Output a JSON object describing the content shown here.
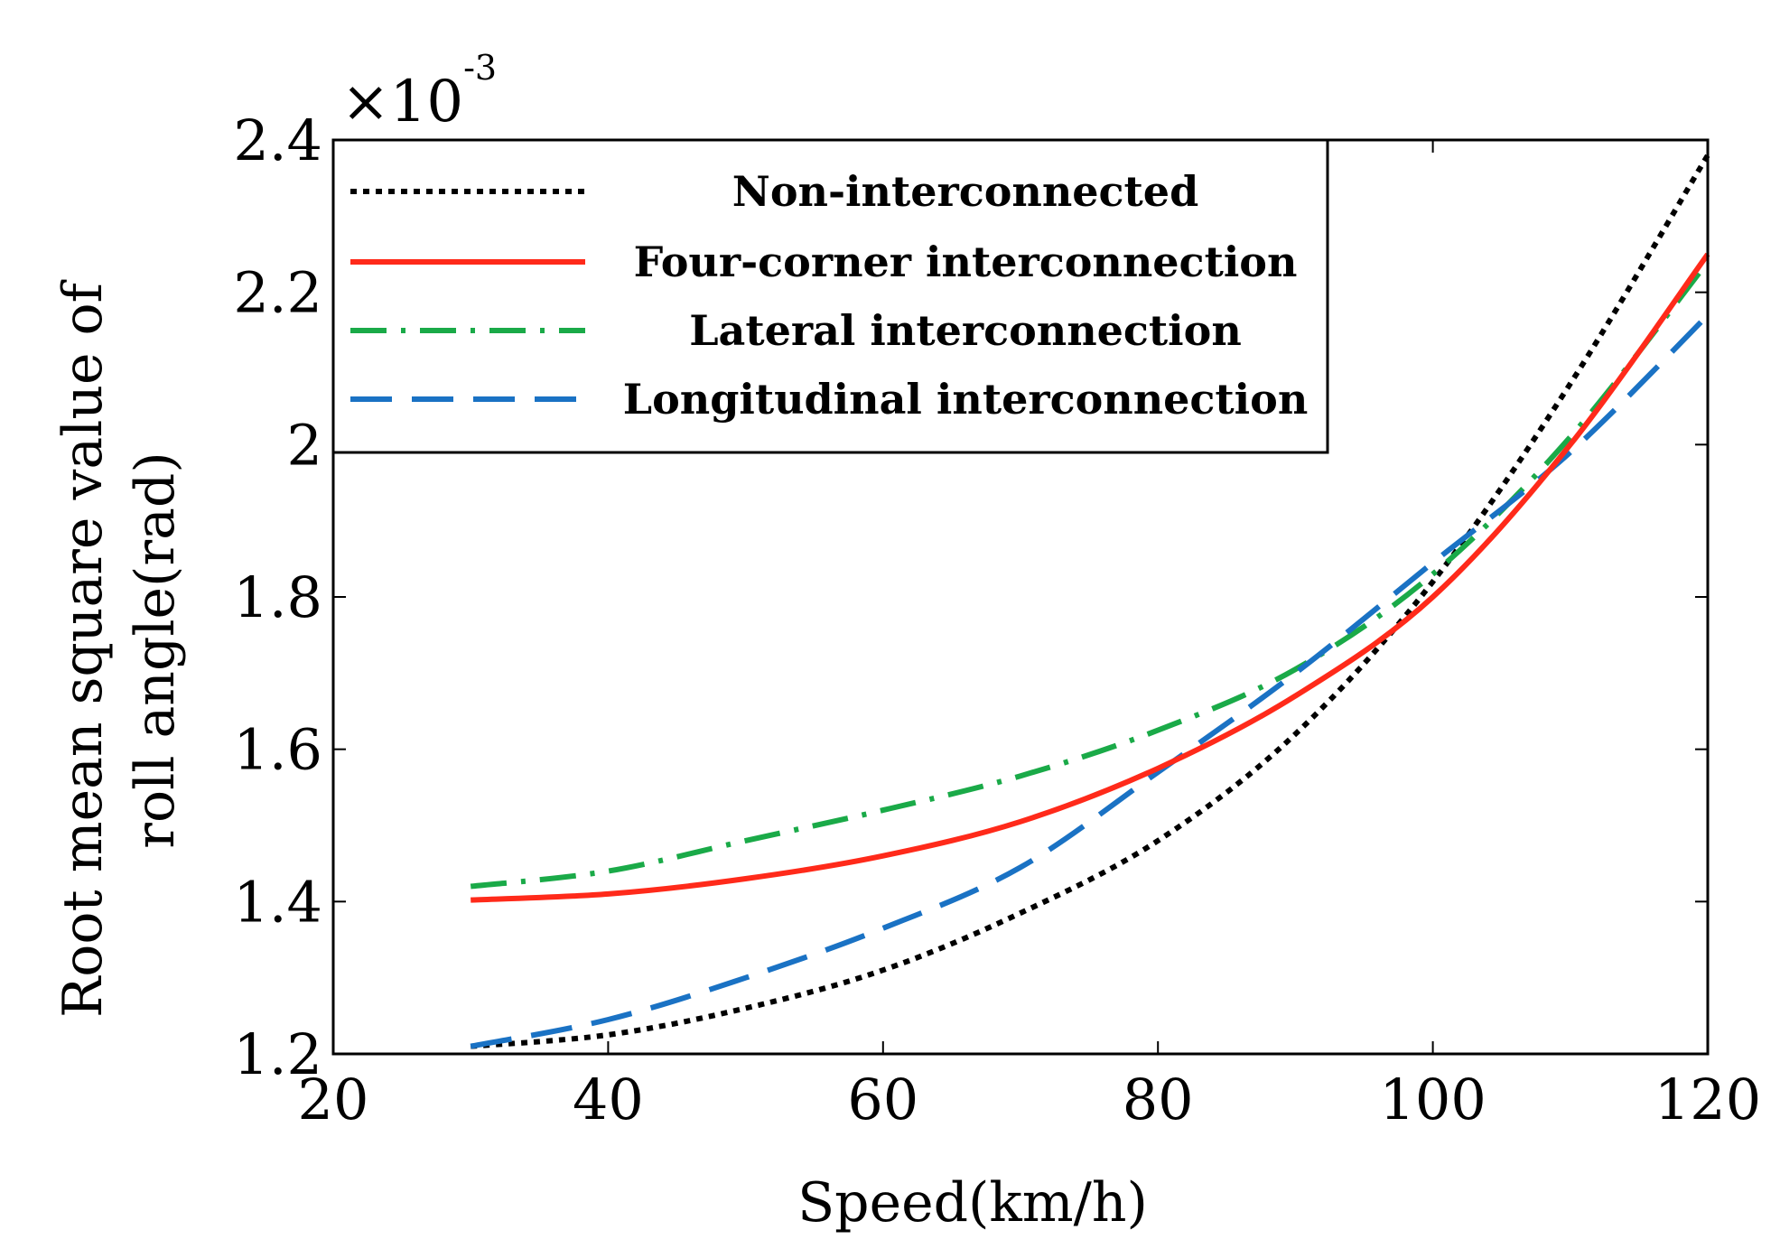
{
  "chart_data": {
    "type": "line",
    "title": "",
    "xlabel": "Speed(km/h)",
    "ylabel_lines": [
      "Root mean square value of",
      "roll angle(rad)"
    ],
    "xlim": [
      20,
      120
    ],
    "ylim": [
      1.2,
      2.4
    ],
    "xticks": [
      20,
      40,
      60,
      80,
      100,
      120
    ],
    "yticks": [
      1.2,
      1.4,
      1.6,
      1.8,
      2.0,
      2.2,
      2.4
    ],
    "ytick_labels": [
      "1.2",
      "1.4",
      "1.6",
      "1.8",
      "2",
      "2.2",
      "2.4"
    ],
    "y_multiplier": {
      "times": "×10",
      "exponent": "-3"
    },
    "grid": false,
    "legend_position": "top-left",
    "x": [
      30,
      40,
      50,
      60,
      70,
      80,
      90,
      100,
      110,
      120
    ],
    "series": [
      {
        "name": "Non-interconnected",
        "style": "dotted",
        "color": "#000000",
        "values": [
          1.21,
          1.225,
          1.26,
          1.31,
          1.385,
          1.48,
          1.62,
          1.82,
          2.08,
          2.38
        ]
      },
      {
        "name": "Four-corner interconnection",
        "style": "solid",
        "color": "#ff2a1a",
        "values": [
          1.402,
          1.41,
          1.43,
          1.46,
          1.505,
          1.575,
          1.67,
          1.8,
          2.0,
          2.25
        ]
      },
      {
        "name": "Lateral interconnection",
        "style": "dashdot",
        "color": "#1aaa48",
        "values": [
          1.42,
          1.44,
          1.48,
          1.52,
          1.565,
          1.625,
          1.705,
          1.83,
          2.01,
          2.24
        ]
      },
      {
        "name": "Longitudinal interconnection",
        "style": "dashed",
        "color": "#1a72c4",
        "values": [
          1.21,
          1.245,
          1.3,
          1.365,
          1.445,
          1.57,
          1.7,
          1.845,
          1.99,
          2.17
        ]
      }
    ]
  }
}
